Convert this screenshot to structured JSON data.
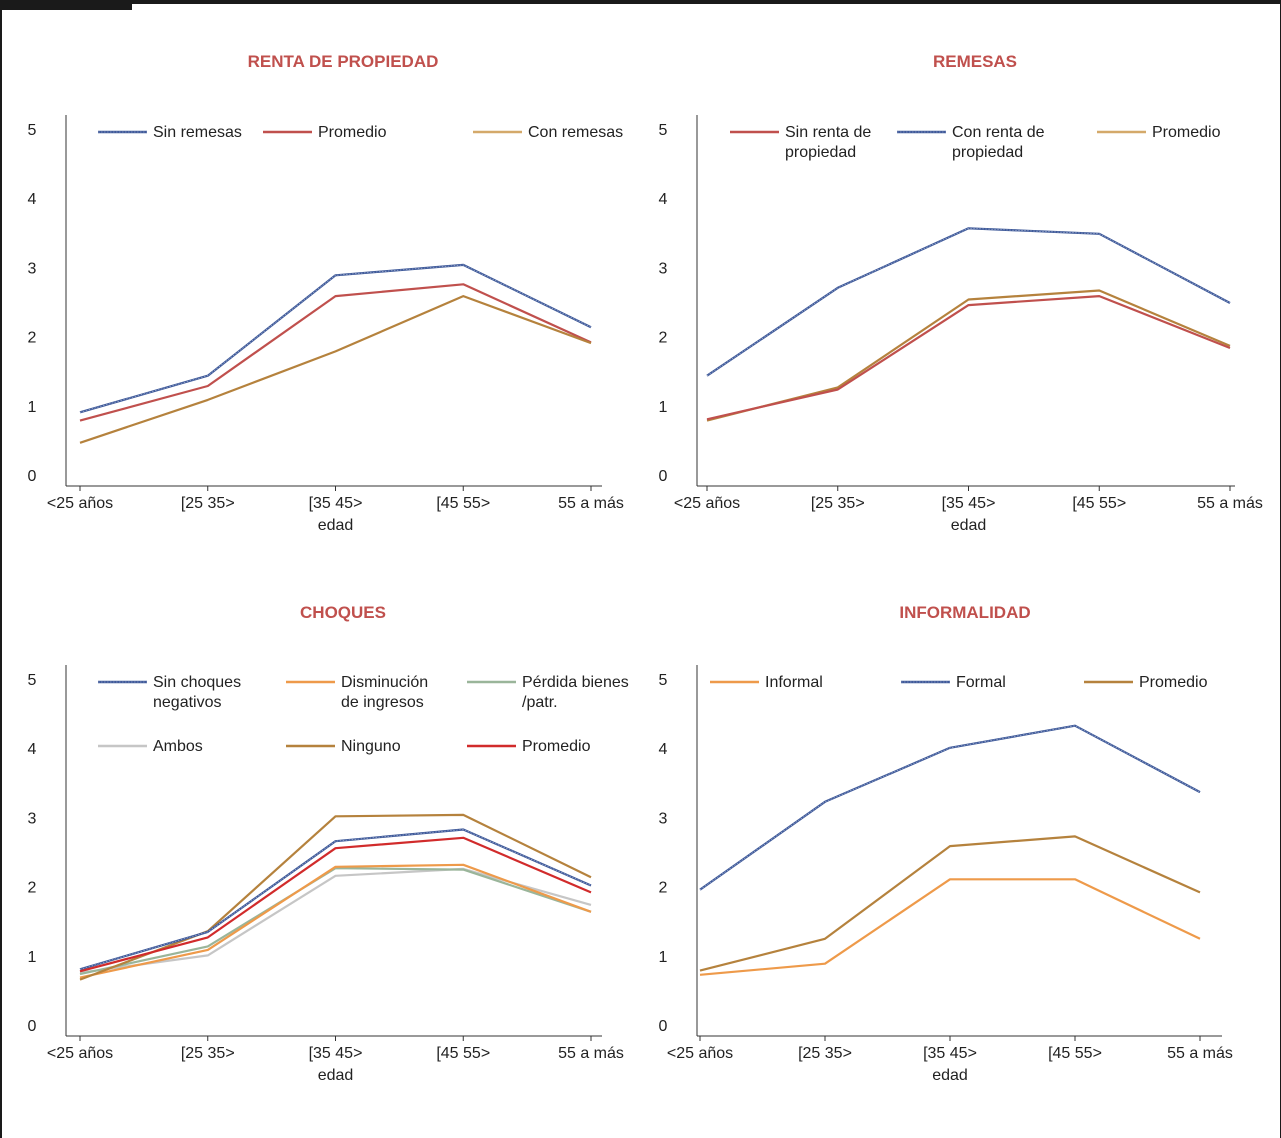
{
  "colors": {
    "title": "#c0504d",
    "navy": "#3f5a9a",
    "red": "#c0504d",
    "tan": "#d4a96a",
    "brown": "#b5823d",
    "orange": "#ee9a4a",
    "sage": "#9ab59a",
    "grey": "#c6c6c6",
    "bright_red": "#d12b2b"
  },
  "chart_data": [
    {
      "type": "line",
      "title": "RENTA DE PROPIEDAD",
      "xlabel": "edad",
      "categories": [
        "<25 años",
        "[25 35>",
        "[35 45>",
        "[45 55>",
        "55 a más"
      ],
      "ylim": [
        0,
        5
      ],
      "yticks": [
        "0",
        "1",
        "2",
        "3",
        "4",
        "5"
      ],
      "legend": [
        {
          "lines": [
            "Sin remesas"
          ],
          "color": "#3f5a9a",
          "dashed": true
        },
        {
          "lines": [
            "Promedio"
          ],
          "color": "#c0504d",
          "dashed": false
        },
        {
          "lines": [
            "Con remesas"
          ],
          "color": "#d4a96a",
          "dashed": false
        }
      ],
      "series": [
        {
          "name": "Sin remesas",
          "color": "#3f5a9a",
          "dashed": true,
          "values": [
            0.92,
            1.45,
            2.9,
            3.05,
            2.15
          ]
        },
        {
          "name": "Promedio",
          "color": "#c0504d",
          "dashed": false,
          "values": [
            0.8,
            1.3,
            2.6,
            2.77,
            1.93
          ]
        },
        {
          "name": "Con remesas",
          "color": "#b5823d",
          "dashed": false,
          "values": [
            0.48,
            1.1,
            1.8,
            2.6,
            1.92
          ]
        }
      ]
    },
    {
      "type": "line",
      "title": "REMESAS",
      "xlabel": "edad",
      "categories": [
        "<25 años",
        "[25 35>",
        "[35 45>",
        "[45 55>",
        "55 a más"
      ],
      "ylim": [
        0,
        5
      ],
      "yticks": [
        "0",
        "1",
        "2",
        "3",
        "4",
        "5"
      ],
      "legend": [
        {
          "lines": [
            "Sin renta de",
            "propiedad"
          ],
          "color": "#c0504d",
          "dashed": false
        },
        {
          "lines": [
            "Con renta de",
            "propiedad"
          ],
          "color": "#3f5a9a",
          "dashed": true
        },
        {
          "lines": [
            "Promedio"
          ],
          "color": "#d4a96a",
          "dashed": false
        }
      ],
      "series": [
        {
          "name": "Con renta de propiedad",
          "color": "#3f5a9a",
          "dashed": true,
          "values": [
            1.45,
            2.72,
            3.58,
            3.5,
            2.5
          ]
        },
        {
          "name": "Promedio",
          "color": "#b5823d",
          "dashed": false,
          "values": [
            0.8,
            1.28,
            2.55,
            2.68,
            1.88
          ]
        },
        {
          "name": "Sin renta de propiedad",
          "color": "#c0504d",
          "dashed": false,
          "values": [
            0.82,
            1.25,
            2.47,
            2.6,
            1.85
          ]
        }
      ]
    },
    {
      "type": "line",
      "title": "CHOQUES",
      "xlabel": "edad",
      "categories": [
        "<25 años",
        "[25 35>",
        "[35 45>",
        "[45 55>",
        "55 a más"
      ],
      "ylim": [
        0,
        5
      ],
      "yticks": [
        "0",
        "1",
        "2",
        "3",
        "4",
        "5"
      ],
      "legend": [
        {
          "lines": [
            "Sin choques",
            "negativos"
          ],
          "color": "#3f5a9a",
          "dashed": true
        },
        {
          "lines": [
            "Disminución",
            "de ingresos"
          ],
          "color": "#ee9a4a",
          "dashed": false
        },
        {
          "lines": [
            "Pérdida bienes",
            "/patr."
          ],
          "color": "#9ab59a",
          "dashed": false
        },
        {
          "lines": [
            "Ambos"
          ],
          "color": "#c6c6c6",
          "dashed": false
        },
        {
          "lines": [
            "Ninguno"
          ],
          "color": "#b5823d",
          "dashed": false
        },
        {
          "lines": [
            "Promedio"
          ],
          "color": "#d12b2b",
          "dashed": false
        }
      ],
      "series": [
        {
          "name": "Ambos",
          "color": "#c6c6c6",
          "dashed": false,
          "values": [
            0.77,
            1.02,
            2.17,
            2.27,
            1.75
          ]
        },
        {
          "name": "Pérdida bienes /patr.",
          "color": "#9ab59a",
          "dashed": false,
          "values": [
            0.75,
            1.15,
            2.28,
            2.26,
            1.65
          ]
        },
        {
          "name": "Disminución de ingresos",
          "color": "#ee9a4a",
          "dashed": false,
          "values": [
            0.7,
            1.1,
            2.3,
            2.33,
            1.65
          ]
        },
        {
          "name": "Ninguno",
          "color": "#b5823d",
          "dashed": false,
          "values": [
            0.67,
            1.37,
            3.03,
            3.05,
            2.15
          ]
        },
        {
          "name": "Sin choques negativos",
          "color": "#3f5a9a",
          "dashed": true,
          "values": [
            0.82,
            1.36,
            2.67,
            2.84,
            2.03
          ]
        },
        {
          "name": "Promedio",
          "color": "#d12b2b",
          "dashed": false,
          "values": [
            0.79,
            1.28,
            2.57,
            2.72,
            1.93
          ]
        }
      ]
    },
    {
      "type": "line",
      "title": "INFORMALIDAD",
      "xlabel": "edad",
      "categories": [
        "<25 años",
        "[25 35>",
        "[35 45>",
        "[45 55>",
        "55 a más"
      ],
      "ylim": [
        0,
        5
      ],
      "yticks": [
        "0",
        "1",
        "2",
        "3",
        "4",
        "5"
      ],
      "legend": [
        {
          "lines": [
            "Informal"
          ],
          "color": "#ee9a4a",
          "dashed": false
        },
        {
          "lines": [
            "Formal"
          ],
          "color": "#3f5a9a",
          "dashed": true
        },
        {
          "lines": [
            "Promedio"
          ],
          "color": "#b5823d",
          "dashed": false
        }
      ],
      "series": [
        {
          "name": "Informal",
          "color": "#ee9a4a",
          "dashed": false,
          "values": [
            0.74,
            0.9,
            2.12,
            2.12,
            1.26
          ]
        },
        {
          "name": "Promedio",
          "color": "#b5823d",
          "dashed": false,
          "values": [
            0.8,
            1.26,
            2.6,
            2.74,
            1.93
          ]
        },
        {
          "name": "Formal",
          "color": "#3f5a9a",
          "dashed": true,
          "values": [
            1.97,
            3.24,
            4.02,
            4.34,
            3.38
          ]
        }
      ]
    }
  ]
}
